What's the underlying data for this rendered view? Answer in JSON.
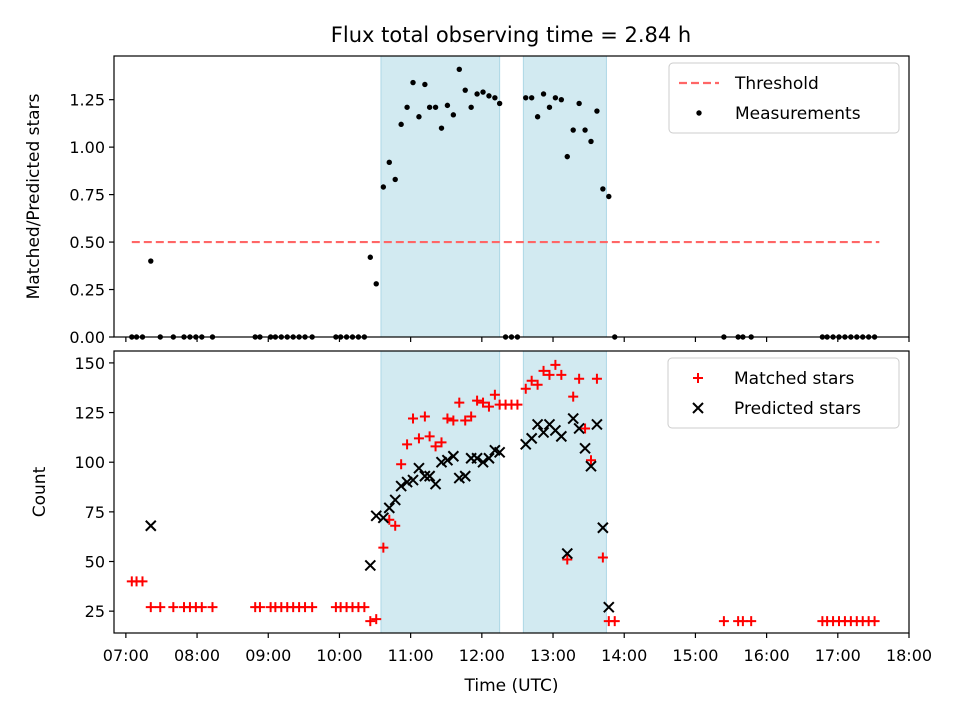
{
  "title": "Flux total observing time = 2.84 h",
  "colors": {
    "band": "#add8e6",
    "threshold": "#ff6666",
    "measurement": "#000000",
    "matched": "#ff0000",
    "predicted": "#000000"
  },
  "chart_data": [
    {
      "type": "scatter",
      "panel": "top",
      "ylabel": "Matched/Predicted stars",
      "xlabel": "",
      "xlim": [
        "06:50",
        "18:00"
      ],
      "ylim": [
        0,
        1.48
      ],
      "y_ticks": [
        "0.00",
        "0.25",
        "0.50",
        "0.75",
        "1.00",
        "1.25"
      ],
      "legend_position": "top-right",
      "legend": [
        "Threshold",
        "Measurements"
      ],
      "shaded_intervals": [
        [
          "10:35",
          "12:15"
        ],
        [
          "12:35",
          "13:45"
        ]
      ],
      "threshold": {
        "name": "Threshold",
        "value": 0.5,
        "x_range": [
          "07:05",
          "17:35"
        ]
      },
      "series": [
        {
          "name": "Measurements",
          "points": [
            [
              "07:05",
              0
            ],
            [
              "07:09",
              0
            ],
            [
              "07:14",
              0
            ],
            [
              "07:21",
              0.4
            ],
            [
              "07:29",
              0
            ],
            [
              "07:40",
              0
            ],
            [
              "07:49",
              0
            ],
            [
              "07:54",
              0
            ],
            [
              "07:59",
              0
            ],
            [
              "08:04",
              0
            ],
            [
              "08:13",
              0
            ],
            [
              "08:49",
              0
            ],
            [
              "08:53",
              0
            ],
            [
              "09:02",
              0
            ],
            [
              "09:06",
              0
            ],
            [
              "09:11",
              0
            ],
            [
              "09:16",
              0
            ],
            [
              "09:21",
              0
            ],
            [
              "09:26",
              0
            ],
            [
              "09:31",
              0
            ],
            [
              "09:37",
              0
            ],
            [
              "09:57",
              0
            ],
            [
              "10:01",
              0
            ],
            [
              "10:06",
              0
            ],
            [
              "10:11",
              0
            ],
            [
              "10:16",
              0
            ],
            [
              "10:21",
              0
            ],
            [
              "10:26",
              0.42
            ],
            [
              "10:31",
              0.28
            ],
            [
              "10:37",
              0.79
            ],
            [
              "10:42",
              0.92
            ],
            [
              "10:47",
              0.83
            ],
            [
              "10:52",
              1.12
            ],
            [
              "10:57",
              1.21
            ],
            [
              "11:02",
              1.34
            ],
            [
              "11:07",
              1.16
            ],
            [
              "11:12",
              1.33
            ],
            [
              "11:16",
              1.21
            ],
            [
              "11:21",
              1.21
            ],
            [
              "11:26",
              1.1
            ],
            [
              "11:31",
              1.22
            ],
            [
              "11:36",
              1.17
            ],
            [
              "11:41",
              1.41
            ],
            [
              "11:46",
              1.3
            ],
            [
              "11:51",
              1.21
            ],
            [
              "11:56",
              1.28
            ],
            [
              "12:01",
              1.29
            ],
            [
              "12:06",
              1.27
            ],
            [
              "12:11",
              1.26
            ],
            [
              "12:15",
              1.23
            ],
            [
              "12:20",
              0
            ],
            [
              "12:25",
              0
            ],
            [
              "12:30",
              0
            ],
            [
              "12:37",
              1.26
            ],
            [
              "12:42",
              1.26
            ],
            [
              "12:47",
              1.16
            ],
            [
              "12:52",
              1.28
            ],
            [
              "12:57",
              1.21
            ],
            [
              "13:02",
              1.26
            ],
            [
              "13:07",
              1.25
            ],
            [
              "13:12",
              0.95
            ],
            [
              "13:17",
              1.09
            ],
            [
              "13:22",
              1.23
            ],
            [
              "13:27",
              1.09
            ],
            [
              "13:32",
              1.03
            ],
            [
              "13:37",
              1.19
            ],
            [
              "13:42",
              0.78
            ],
            [
              "13:47",
              0.74
            ],
            [
              "13:52",
              0
            ],
            [
              "15:24",
              0
            ],
            [
              "15:36",
              0
            ],
            [
              "15:40",
              0
            ],
            [
              "15:47",
              0
            ],
            [
              "16:47",
              0
            ],
            [
              "16:51",
              0
            ],
            [
              "16:56",
              0
            ],
            [
              "17:01",
              0
            ],
            [
              "17:06",
              0
            ],
            [
              "17:11",
              0
            ],
            [
              "17:16",
              0
            ],
            [
              "17:21",
              0
            ],
            [
              "17:26",
              0
            ],
            [
              "17:31",
              0
            ]
          ]
        }
      ]
    },
    {
      "type": "scatter",
      "panel": "bottom",
      "ylabel": "Count",
      "xlabel": "Time (UTC)",
      "xlim": [
        "06:50",
        "18:00"
      ],
      "ylim": [
        14,
        156
      ],
      "y_ticks": [
        "25",
        "50",
        "75",
        "100",
        "125",
        "150"
      ],
      "x_ticks": [
        "07:00",
        "08:00",
        "09:00",
        "10:00",
        "11:00",
        "12:00",
        "13:00",
        "14:00",
        "15:00",
        "16:00",
        "17:00",
        "18:00"
      ],
      "legend_position": "top-right",
      "legend": [
        "Matched stars",
        "Predicted stars"
      ],
      "shaded_intervals": [
        [
          "10:35",
          "12:15"
        ],
        [
          "12:35",
          "13:45"
        ]
      ],
      "series": [
        {
          "name": "Matched stars",
          "marker": "+",
          "points": [
            [
              "07:05",
              40
            ],
            [
              "07:09",
              40
            ],
            [
              "07:14",
              40
            ],
            [
              "07:21",
              27
            ],
            [
              "07:29",
              27
            ],
            [
              "07:40",
              27
            ],
            [
              "07:49",
              27
            ],
            [
              "07:54",
              27
            ],
            [
              "07:59",
              27
            ],
            [
              "08:04",
              27
            ],
            [
              "08:13",
              27
            ],
            [
              "08:49",
              27
            ],
            [
              "08:53",
              27
            ],
            [
              "09:02",
              27
            ],
            [
              "09:06",
              27
            ],
            [
              "09:11",
              27
            ],
            [
              "09:16",
              27
            ],
            [
              "09:21",
              27
            ],
            [
              "09:26",
              27
            ],
            [
              "09:31",
              27
            ],
            [
              "09:37",
              27
            ],
            [
              "09:57",
              27
            ],
            [
              "10:01",
              27
            ],
            [
              "10:06",
              27
            ],
            [
              "10:11",
              27
            ],
            [
              "10:16",
              27
            ],
            [
              "10:21",
              27
            ],
            [
              "10:26",
              20
            ],
            [
              "10:31",
              21
            ],
            [
              "10:37",
              57
            ],
            [
              "10:42",
              71
            ],
            [
              "10:47",
              68
            ],
            [
              "10:52",
              99
            ],
            [
              "10:57",
              109
            ],
            [
              "11:02",
              122
            ],
            [
              "11:07",
              112
            ],
            [
              "11:12",
              123
            ],
            [
              "11:16",
              113
            ],
            [
              "11:21",
              108
            ],
            [
              "11:26",
              110
            ],
            [
              "11:31",
              122
            ],
            [
              "11:36",
              121
            ],
            [
              "11:41",
              130
            ],
            [
              "11:46",
              121
            ],
            [
              "11:51",
              123
            ],
            [
              "11:56",
              131
            ],
            [
              "12:01",
              130
            ],
            [
              "12:06",
              128
            ],
            [
              "12:11",
              134
            ],
            [
              "12:15",
              129
            ],
            [
              "12:20",
              129
            ],
            [
              "12:25",
              129
            ],
            [
              "12:30",
              129
            ],
            [
              "12:37",
              137
            ],
            [
              "12:42",
              141
            ],
            [
              "12:47",
              139
            ],
            [
              "12:52",
              146
            ],
            [
              "12:57",
              144
            ],
            [
              "13:02",
              149
            ],
            [
              "13:07",
              144
            ],
            [
              "13:12",
              51
            ],
            [
              "13:17",
              133
            ],
            [
              "13:22",
              142
            ],
            [
              "13:27",
              117
            ],
            [
              "13:32",
              101
            ],
            [
              "13:37",
              142
            ],
            [
              "13:42",
              52
            ],
            [
              "13:47",
              20
            ],
            [
              "13:52",
              20
            ],
            [
              "15:24",
              20
            ],
            [
              "15:36",
              20
            ],
            [
              "15:40",
              20
            ],
            [
              "15:47",
              20
            ],
            [
              "16:47",
              20
            ],
            [
              "16:51",
              20
            ],
            [
              "16:56",
              20
            ],
            [
              "17:01",
              20
            ],
            [
              "17:06",
              20
            ],
            [
              "17:11",
              20
            ],
            [
              "17:16",
              20
            ],
            [
              "17:21",
              20
            ],
            [
              "17:26",
              20
            ],
            [
              "17:31",
              20
            ]
          ]
        },
        {
          "name": "Predicted stars",
          "marker": "x",
          "points": [
            [
              "07:21",
              68
            ],
            [
              "10:26",
              48
            ],
            [
              "10:31",
              73
            ],
            [
              "10:37",
              72
            ],
            [
              "10:42",
              77
            ],
            [
              "10:47",
              81
            ],
            [
              "10:52",
              88
            ],
            [
              "10:57",
              90
            ],
            [
              "11:02",
              91
            ],
            [
              "11:07",
              97
            ],
            [
              "11:12",
              93
            ],
            [
              "11:16",
              93
            ],
            [
              "11:21",
              89
            ],
            [
              "11:26",
              100
            ],
            [
              "11:31",
              101
            ],
            [
              "11:36",
              103
            ],
            [
              "11:41",
              92
            ],
            [
              "11:46",
              93
            ],
            [
              "11:51",
              102
            ],
            [
              "11:56",
              102
            ],
            [
              "12:01",
              100
            ],
            [
              "12:06",
              102
            ],
            [
              "12:11",
              106
            ],
            [
              "12:15",
              105
            ],
            [
              "12:37",
              109
            ],
            [
              "12:42",
              112
            ],
            [
              "12:47",
              119
            ],
            [
              "12:52",
              115
            ],
            [
              "12:57",
              119
            ],
            [
              "13:02",
              116
            ],
            [
              "13:07",
              113
            ],
            [
              "13:12",
              54
            ],
            [
              "13:17",
              122
            ],
            [
              "13:22",
              117
            ],
            [
              "13:27",
              107
            ],
            [
              "13:32",
              98
            ],
            [
              "13:37",
              119
            ],
            [
              "13:42",
              67
            ],
            [
              "13:47",
              27
            ]
          ]
        }
      ]
    }
  ]
}
